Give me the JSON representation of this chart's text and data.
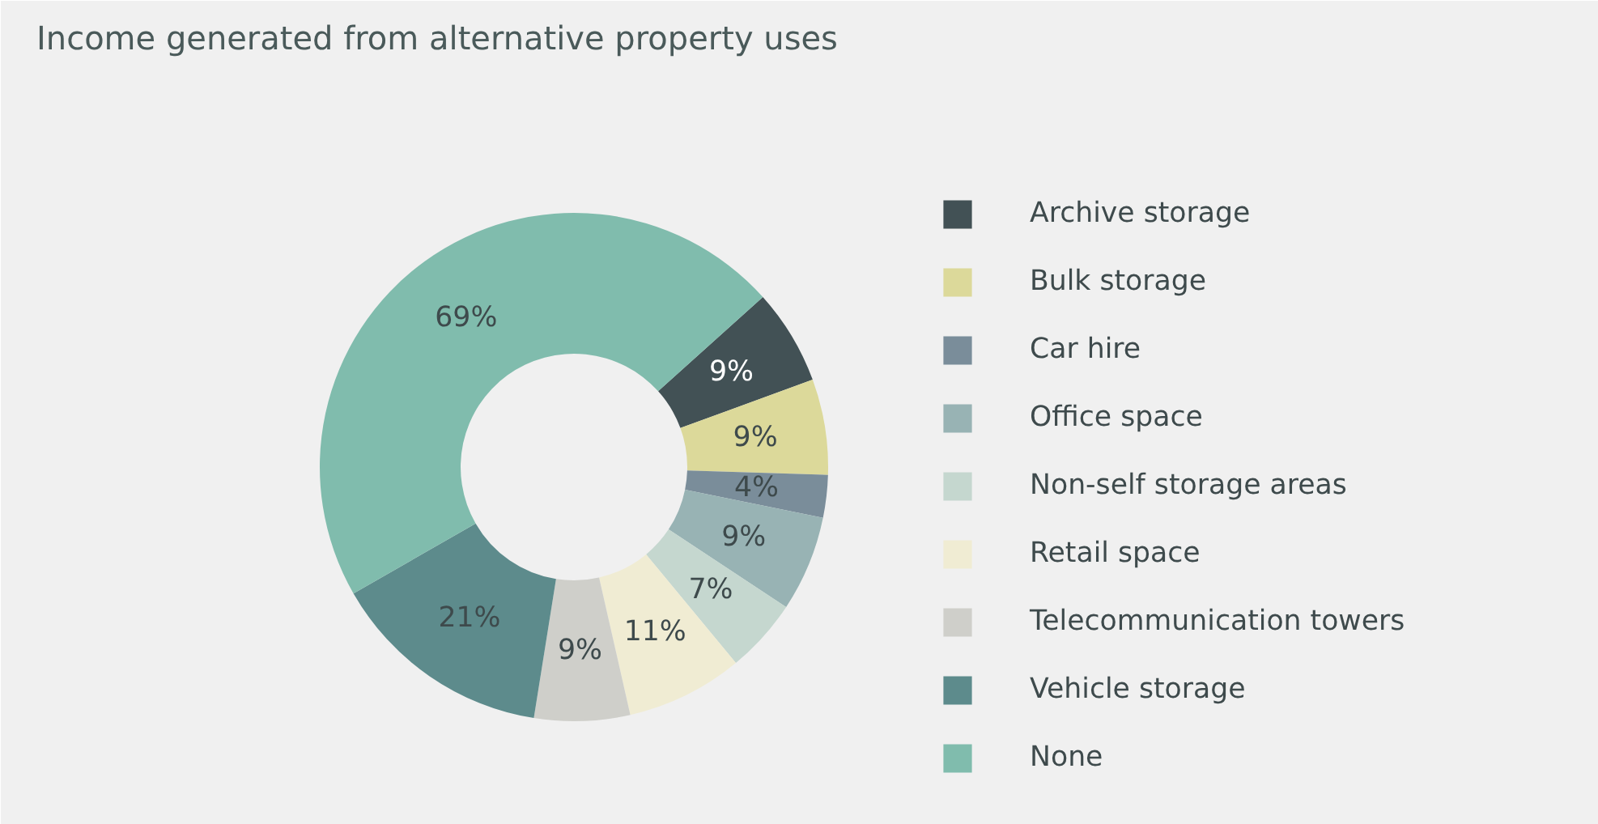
{
  "chart_data": {
    "type": "donut",
    "title": "Income generated from alternative property uses",
    "categories": [
      "Archive storage",
      "Bulk storage",
      "Car hire",
      "Office space",
      "Non-self storage areas",
      "Retail space",
      "Telecommunication towers",
      "Vehicle storage",
      "None"
    ],
    "values": [
      9,
      9,
      4,
      9,
      7,
      11,
      9,
      21,
      69
    ],
    "colors": [
      "#425155",
      "#dcd99a",
      "#7a8d9a",
      "#98b3b4",
      "#c5d7cf",
      "#f0ecd3",
      "#cfcfca",
      "#5d8b8c",
      "#80bcad"
    ],
    "value_labels": [
      "9%",
      "9%",
      "4%",
      "9%",
      "7%",
      "11%",
      "9%",
      "21%",
      "69%"
    ],
    "legend": "right"
  }
}
